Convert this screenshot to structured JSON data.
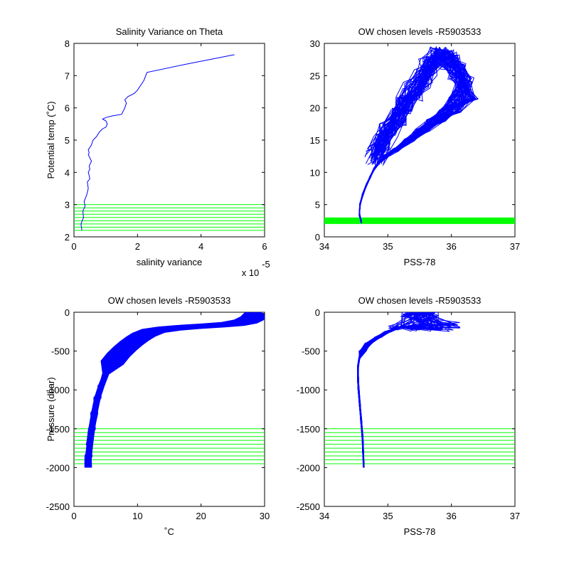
{
  "colors": {
    "data": "#0000ff",
    "levels": "#00ff00",
    "axes": "#000000",
    "background": "#ffffff"
  },
  "chart_data": [
    {
      "id": "p1",
      "type": "line",
      "title": "Salinity Variance on Theta",
      "xlabel": "salinity variance",
      "ylabel": "Potential temp (˚C)",
      "xlim": [
        0,
        6
      ],
      "ylim": [
        2,
        8
      ],
      "xticks": [
        0,
        2,
        4,
        6
      ],
      "yticks": [
        2,
        3,
        4,
        5,
        6,
        7,
        8
      ],
      "x_multiplier_label": "x 10",
      "x_multiplier_exponent": "-5",
      "series": [
        {
          "x": [
            0.25,
            0.22,
            0.3,
            0.28,
            0.35,
            0.32,
            0.4,
            0.45,
            0.42,
            0.5,
            0.48,
            0.45,
            0.5,
            0.48,
            0.55,
            0.5,
            0.45,
            0.48,
            0.45,
            0.55,
            0.6,
            0.7,
            0.8,
            0.9,
            1.0,
            1.05,
            1.0,
            0.9,
            1.0,
            1.2,
            1.5,
            1.6,
            1.65,
            1.6,
            1.7,
            1.9,
            2.0,
            2.1,
            2.2,
            2.3,
            3.5,
            5.05
          ],
          "y": [
            2.2,
            2.4,
            2.6,
            2.8,
            2.95,
            3.1,
            3.3,
            3.5,
            3.7,
            3.8,
            3.9,
            4.0,
            4.1,
            4.2,
            4.35,
            4.45,
            4.55,
            4.6,
            4.7,
            4.85,
            5.0,
            5.1,
            5.25,
            5.35,
            5.4,
            5.5,
            5.6,
            5.65,
            5.7,
            5.75,
            5.8,
            6.0,
            6.15,
            6.25,
            6.35,
            6.45,
            6.55,
            6.7,
            6.85,
            7.1,
            7.35,
            7.65
          ]
        }
      ],
      "levels_y": [
        2.2,
        2.3,
        2.4,
        2.5,
        2.6,
        2.7,
        2.8,
        2.9,
        3.0
      ]
    },
    {
      "id": "p2",
      "type": "line",
      "title": "OW chosen levels -R5903533",
      "xlabel": "PSS-78",
      "ylabel": "",
      "xlim": [
        34,
        37
      ],
      "ylim": [
        0,
        30
      ],
      "xticks": [
        34,
        35,
        36,
        37
      ],
      "yticks": [
        0,
        5,
        10,
        15,
        20,
        25,
        30
      ],
      "profile_core": {
        "x": [
          34.58,
          34.55,
          34.56,
          34.6,
          34.66,
          34.72,
          34.78,
          34.85,
          34.95,
          35.1,
          35.3,
          35.5,
          35.7,
          35.9,
          36.1
        ],
        "y": [
          2.3,
          3.5,
          5.0,
          6.5,
          8.0,
          9.3,
          10.5,
          11.5,
          12.5,
          13.5,
          15.0,
          16.5,
          18.0,
          19.5,
          21.5
        ]
      },
      "profile_envelope": {
        "upper_x": [
          34.75,
          34.85,
          34.95,
          35.1,
          35.2,
          35.35,
          35.5,
          35.6,
          35.75,
          35.9,
          36.05,
          36.15
        ],
        "upper_y": [
          14.0,
          16.0,
          18.0,
          20.0,
          22.0,
          24.0,
          26.0,
          28.0,
          29.5,
          29.0,
          27.0,
          25.0
        ]
      },
      "level_band_y": [
        2.0,
        3.0
      ]
    },
    {
      "id": "p3",
      "type": "line",
      "title": "OW chosen levels -R5903533",
      "xlabel": "˚C",
      "ylabel": "Pressure (dbar)",
      "xlim": [
        0,
        30
      ],
      "ylim": [
        -2500,
        0
      ],
      "xticks": [
        0,
        10,
        20,
        30
      ],
      "yticks": [
        -2500,
        -2000,
        -1500,
        -1000,
        -500,
        0
      ],
      "series": [
        {
          "x": [
            2.2,
            2.3,
            2.5,
            2.8,
            3.2,
            3.7,
            4.3,
            5.0,
            6.0,
            7.0,
            8.0,
            9.0,
            10.0,
            11.0,
            12.5,
            15.0,
            18.0,
            22.0,
            25.0,
            27.0,
            28.0,
            28.5,
            29.0
          ],
          "y": [
            -2000,
            -1850,
            -1700,
            -1500,
            -1300,
            -1100,
            -950,
            -800,
            -650,
            -550,
            -470,
            -400,
            -340,
            -290,
            -240,
            -210,
            -190,
            -170,
            -150,
            -120,
            -80,
            -40,
            0
          ]
        }
      ],
      "band_width_c": 1.5,
      "levels_y": [
        -1500,
        -1550,
        -1600,
        -1650,
        -1700,
        -1750,
        -1800,
        -1850,
        -1900,
        -1950
      ]
    },
    {
      "id": "p4",
      "type": "line",
      "title": "OW chosen levels -R5903533",
      "xlabel": "PSS-78",
      "ylabel": "",
      "xlim": [
        34,
        37
      ],
      "ylim": [
        -2500,
        0
      ],
      "xticks": [
        34,
        35,
        36,
        37
      ],
      "yticks": [
        -2500,
        -2000,
        -1500,
        -1000,
        -500,
        0
      ],
      "series": [
        {
          "x": [
            34.62,
            34.61,
            34.6,
            34.58,
            34.56,
            34.54,
            34.53,
            34.53,
            34.55,
            34.6,
            34.7,
            34.85,
            35.0,
            35.2
          ],
          "y": [
            -2000,
            -1800,
            -1600,
            -1400,
            -1200,
            -1000,
            -850,
            -700,
            -600,
            -500,
            -400,
            -320,
            -250,
            -190
          ]
        }
      ],
      "spike_x": [
        35.0,
        36.15
      ],
      "spike_y": [
        -250,
        -100
      ],
      "levels_y": [
        -1500,
        -1550,
        -1600,
        -1650,
        -1700,
        -1750,
        -1800,
        -1850,
        -1900,
        -1950
      ]
    }
  ]
}
